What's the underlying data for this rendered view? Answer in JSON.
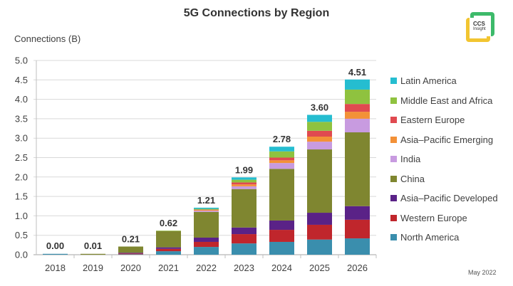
{
  "chart_data": {
    "type": "bar",
    "stacked": true,
    "title": "5G Connections by Region",
    "xlabel": "",
    "ylabel": "Connections (B)",
    "ylim": [
      0,
      5.0
    ],
    "yticks": [
      "0.0",
      "0.5",
      "1.0",
      "1.5",
      "2.0",
      "2.5",
      "3.0",
      "3.5",
      "4.0",
      "4.5",
      "5.0"
    ],
    "grid": true,
    "legend_position": "right",
    "categories": [
      "2018",
      "2019",
      "2020",
      "2021",
      "2022",
      "2023",
      "2024",
      "2025",
      "2026"
    ],
    "totals_labels": [
      "0.00",
      "0.01",
      "0.21",
      "0.62",
      "1.21",
      "1.99",
      "2.78",
      "3.60",
      "4.51"
    ],
    "series": [
      {
        "name": "North America",
        "color": "#3a8ead",
        "values": [
          0.0,
          0.0,
          0.01,
          0.09,
          0.2,
          0.29,
          0.33,
          0.39,
          0.42
        ]
      },
      {
        "name": "Western Europe",
        "color": "#c0262c",
        "values": [
          0.0,
          0.0,
          0.02,
          0.06,
          0.13,
          0.24,
          0.31,
          0.38,
          0.48
        ]
      },
      {
        "name": "Asia–Pacific Developed",
        "color": "#5a2287",
        "values": [
          0.0,
          0.0,
          0.02,
          0.04,
          0.11,
          0.17,
          0.24,
          0.31,
          0.35
        ]
      },
      {
        "name": "China",
        "color": "#7f8630",
        "values": [
          0.0,
          0.01,
          0.16,
          0.42,
          0.66,
          0.99,
          1.33,
          1.63,
          1.9
        ]
      },
      {
        "name": "India",
        "color": "#c89be0",
        "values": [
          0.0,
          0.0,
          0.0,
          0.0,
          0.03,
          0.07,
          0.15,
          0.2,
          0.35
        ]
      },
      {
        "name": "Asia–Pacific Emerging",
        "color": "#f39137",
        "values": [
          0.0,
          0.0,
          0.0,
          0.0,
          0.02,
          0.05,
          0.07,
          0.13,
          0.18
        ]
      },
      {
        "name": "Eastern Europe",
        "color": "#e04a50",
        "values": [
          0.0,
          0.0,
          0.0,
          0.0,
          0.01,
          0.05,
          0.07,
          0.15,
          0.2
        ]
      },
      {
        "name": "Middle East and Africa",
        "color": "#8fc23f",
        "values": [
          0.0,
          0.0,
          0.0,
          0.01,
          0.02,
          0.07,
          0.16,
          0.23,
          0.37
        ]
      },
      {
        "name": "Latin America",
        "color": "#25bdd0",
        "values": [
          0.0,
          0.0,
          0.0,
          0.0,
          0.03,
          0.06,
          0.12,
          0.18,
          0.26
        ]
      }
    ]
  },
  "legend": [
    {
      "label": "Latin America",
      "color": "#25bdd0"
    },
    {
      "label": "Middle East and Africa",
      "color": "#8fc23f"
    },
    {
      "label": "Eastern Europe",
      "color": "#e04a50"
    },
    {
      "label": "Asia–Pacific Emerging",
      "color": "#f39137"
    },
    {
      "label": "India",
      "color": "#c89be0"
    },
    {
      "label": "China",
      "color": "#7f8630"
    },
    {
      "label": "Asia–Pacific Developed",
      "color": "#5a2287"
    },
    {
      "label": "Western Europe",
      "color": "#c0262c"
    },
    {
      "label": "North America",
      "color": "#3a8ead"
    }
  ],
  "logo": {
    "line1": "CCS",
    "line2": "Insight"
  },
  "footer": {
    "date": "May 2022"
  }
}
